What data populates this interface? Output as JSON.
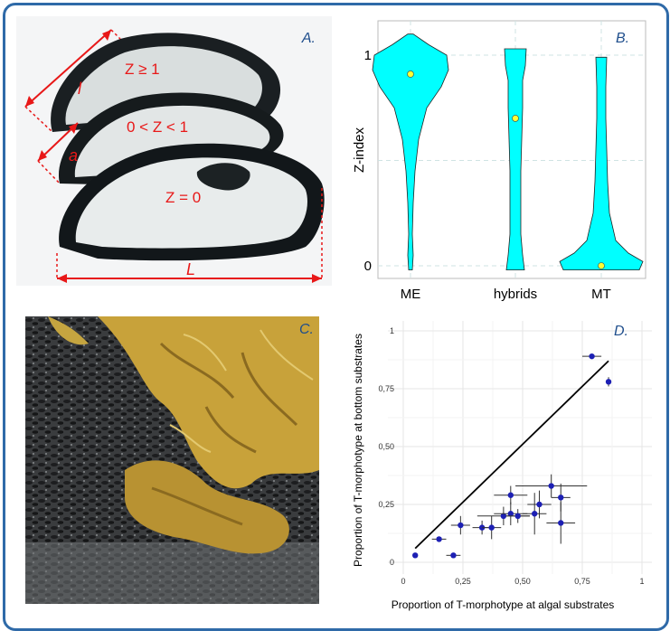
{
  "panels": {
    "a": {
      "letter": "A.",
      "labels": {
        "l": "l",
        "a": "a",
        "L": "L",
        "z1": "Z ≥ 1",
        "z2": "0 < Z < 1",
        "z3": "Z = 0"
      },
      "colors": {
        "shell_dark": "#151a1c",
        "nacre": "#e4e8e8",
        "annotation": "#e81818"
      }
    },
    "b": {
      "letter": "B.",
      "ylabel": "Z-index",
      "colors": {
        "violin": "#00ffff",
        "median": "#ffff33"
      }
    },
    "c": {
      "letter": "C.",
      "colors": {
        "mussels": "#2a2b2c",
        "algae": "#c8a23a",
        "rock": "#7d8082"
      }
    },
    "d": {
      "letter": "D.",
      "xlabel": "Proportion of T-morphotype at algal substrates",
      "ylabel": "Proportion of T-morphotype at bottom substrates",
      "colors": {
        "point": "#1d20b4",
        "line": "#000000"
      }
    }
  },
  "chart_data": [
    {
      "type": "violin",
      "ylabel": "Z-index",
      "categories": [
        "ME",
        "hybrids",
        "MT"
      ],
      "ylim": [
        0,
        1
      ],
      "yticks": [
        "0",
        "1"
      ],
      "medians": [
        0.91,
        0.7,
        0.0
      ],
      "range_min": [
        0.0,
        0.0,
        0.0
      ],
      "range_max": [
        1.1,
        1.03,
        0.99
      ]
    },
    {
      "type": "scatter",
      "xlabel": "Proportion of T-morphotype at algal substrates",
      "ylabel": "Proportion of T-morphotype at bottom substrates",
      "xlim": [
        0,
        1
      ],
      "ylim": [
        0,
        1
      ],
      "xticks": [
        "0",
        "0,25",
        "0,50",
        "0,75",
        "1"
      ],
      "yticks": [
        "0",
        "0,25",
        "0,50",
        "0,75",
        "1"
      ],
      "reference_line": {
        "from": [
          0.05,
          0.06
        ],
        "to": [
          0.86,
          0.87
        ]
      },
      "points": [
        {
          "x": 0.05,
          "y": 0.03
        },
        {
          "x": 0.15,
          "y": 0.1,
          "xerr": 0.03,
          "yerr": 0.01
        },
        {
          "x": 0.21,
          "y": 0.03,
          "xerr": 0.03,
          "yerr": 0.01
        },
        {
          "x": 0.24,
          "y": 0.16,
          "xerr": 0.04,
          "yerr": 0.04
        },
        {
          "x": 0.33,
          "y": 0.15,
          "xerr": 0.04,
          "yerr": 0.03
        },
        {
          "x": 0.37,
          "y": 0.15,
          "xerr": 0.04,
          "yerr": 0.05
        },
        {
          "x": 0.42,
          "y": 0.2,
          "xerr": 0.11,
          "yerr": 0.04
        },
        {
          "x": 0.45,
          "y": 0.21,
          "xerr": 0.07,
          "yerr": 0.05
        },
        {
          "x": 0.45,
          "y": 0.29,
          "xerr": 0.07,
          "yerr": 0.04
        },
        {
          "x": 0.48,
          "y": 0.2,
          "xerr": 0.05,
          "yerr": 0.03
        },
        {
          "x": 0.55,
          "y": 0.21,
          "xerr": 0.05,
          "yerr": 0.09
        },
        {
          "x": 0.57,
          "y": 0.25,
          "xerr": 0.05,
          "yerr": 0.06
        },
        {
          "x": 0.62,
          "y": 0.33,
          "xerr": 0.15,
          "yerr": 0.05
        },
        {
          "x": 0.66,
          "y": 0.28,
          "xerr": 0.04,
          "yerr": 0.06
        },
        {
          "x": 0.66,
          "y": 0.17,
          "xerr": 0.06,
          "yerr": 0.09
        },
        {
          "x": 0.79,
          "y": 0.89,
          "xerr": 0.04,
          "yerr": 0.01
        },
        {
          "x": 0.86,
          "y": 0.78,
          "xerr": 0.01,
          "yerr": 0.02
        }
      ]
    }
  ]
}
